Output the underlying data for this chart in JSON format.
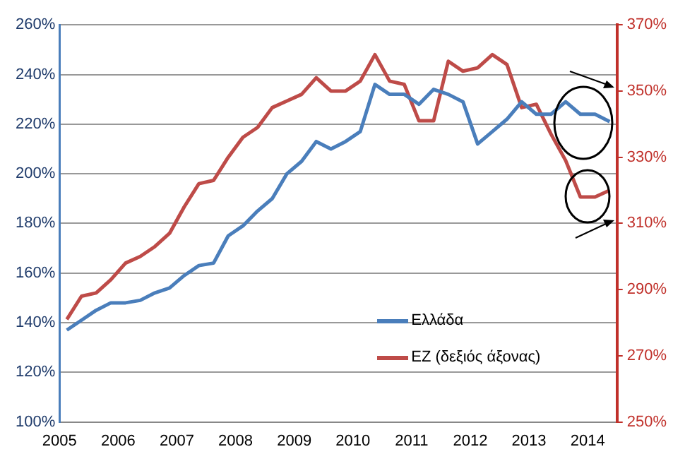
{
  "chart_data": {
    "type": "line",
    "x": [
      2005.125,
      2005.375,
      2005.625,
      2005.875,
      2006.125,
      2006.375,
      2006.625,
      2006.875,
      2007.125,
      2007.375,
      2007.625,
      2007.875,
      2008.125,
      2008.375,
      2008.625,
      2008.875,
      2009.125,
      2009.375,
      2009.625,
      2009.875,
      2010.125,
      2010.375,
      2010.625,
      2010.875,
      2011.125,
      2011.375,
      2011.625,
      2011.875,
      2012.125,
      2012.375,
      2012.625,
      2012.875,
      2013.125,
      2013.375,
      2013.625,
      2013.875,
      2014.125,
      2014.375
    ],
    "series": [
      {
        "name": "Ελλάδα",
        "color": "#4a7ebb",
        "values": [
          137,
          141,
          145,
          148,
          148,
          149,
          152,
          154,
          159,
          163,
          164,
          175,
          179,
          185,
          190,
          200,
          205,
          213,
          210,
          213,
          217,
          236,
          232,
          232,
          228,
          234,
          232,
          229,
          212,
          217,
          222,
          229,
          224,
          224,
          229,
          224,
          224,
          221
        ]
      },
      {
        "name": "ΕΖ (δεξιός άξονας)",
        "color": "#be4b48",
        "axis": "y2",
        "values": [
          281,
          288,
          289,
          293,
          298,
          300,
          303,
          307,
          315,
          322,
          323,
          330,
          336,
          339,
          345,
          347,
          349,
          354,
          350,
          350,
          353,
          361,
          353,
          352,
          341,
          341,
          359,
          356,
          357,
          361,
          358,
          345,
          346,
          337,
          329,
          318,
          318,
          320
        ]
      }
    ],
    "xlim": [
      2005,
      2014.5
    ],
    "xticks": [
      2005,
      2006,
      2007,
      2008,
      2009,
      2010,
      2011,
      2012,
      2013,
      2014
    ],
    "ylim": [
      100,
      260
    ],
    "yticks": [
      {
        "value": 100,
        "label": "100%"
      },
      {
        "value": 120,
        "label": "120%"
      },
      {
        "value": 140,
        "label": "140%"
      },
      {
        "value": 160,
        "label": "160%"
      },
      {
        "value": 180,
        "label": "180%"
      },
      {
        "value": 200,
        "label": "200%"
      },
      {
        "value": 220,
        "label": "220%"
      },
      {
        "value": 240,
        "label": "240%"
      },
      {
        "value": 260,
        "label": "260%"
      }
    ],
    "y2lim": [
      250,
      370
    ],
    "y2ticks": [
      {
        "value": 250,
        "label": "250%"
      },
      {
        "value": 270,
        "label": "270%"
      },
      {
        "value": 290,
        "label": "290%"
      },
      {
        "value": 310,
        "label": "310%"
      },
      {
        "value": 330,
        "label": "330%"
      },
      {
        "value": 350,
        "label": "350%"
      },
      {
        "value": 370,
        "label": "370%"
      }
    ],
    "grid": "y",
    "legend": "bottom",
    "marker": "none",
    "line_style": "solid"
  }
}
